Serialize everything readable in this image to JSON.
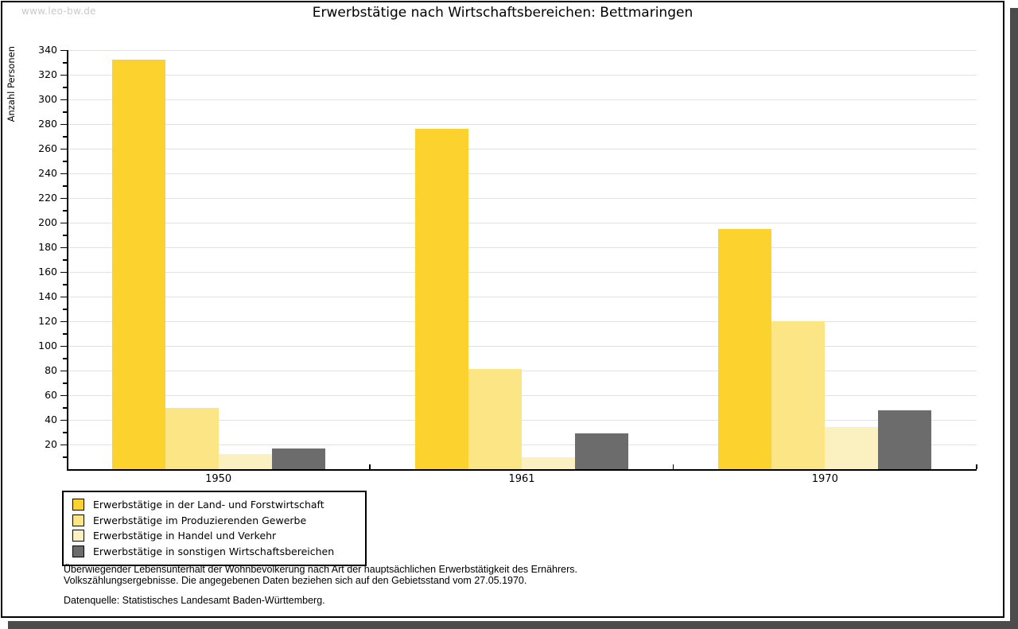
{
  "watermark": "www.leo-bw.de",
  "title": "Erwerbstätige nach Wirtschaftsbereichen: Bettmaringen",
  "chart_data": {
    "type": "bar",
    "title": "Erwerbstätige nach Wirtschaftsbereichen: Bettmaringen",
    "xlabel": "",
    "ylabel": "Anzahl Personen",
    "ylim": [
      0,
      340
    ],
    "ytick_step": 20,
    "minor_tick_step": 10,
    "grid": true,
    "legend_position": "bottom-left",
    "categories": [
      "1950",
      "1961",
      "1970"
    ],
    "series": [
      {
        "name": "Erwerbstätige in der Land- und Forstwirtschaft",
        "color": "#fcd22e",
        "values": [
          332,
          276,
          195
        ]
      },
      {
        "name": "Erwerbstätige im Produzierenden Gewerbe",
        "color": "#fbe584",
        "values": [
          50,
          81,
          120
        ]
      },
      {
        "name": "Erwerbstätige in Handel und Verkehr",
        "color": "#fbf0c0",
        "values": [
          12,
          10,
          34
        ]
      },
      {
        "name": "Erwerbstätige in sonstigen Wirtschaftsbereichen",
        "color": "#6c6c6c",
        "values": [
          17,
          29,
          48
        ]
      }
    ]
  },
  "footnotes": [
    "Überwiegender Lebensunterhalt der Wohnbevölkerung nach Art der hauptsächlichen Erwerbstätigkeit des Ernährers.",
    "Volkszählungsergebnisse. Die angegebenen Daten beziehen sich auf den Gebietsstand vom 27.05.1970."
  ],
  "source": "Datenquelle: Statistisches Landesamt Baden-Württemberg.",
  "colors": {
    "shadow": "#4c4c4c",
    "gridline": "#e2e2e2",
    "watermark": "#c9c9c9"
  }
}
